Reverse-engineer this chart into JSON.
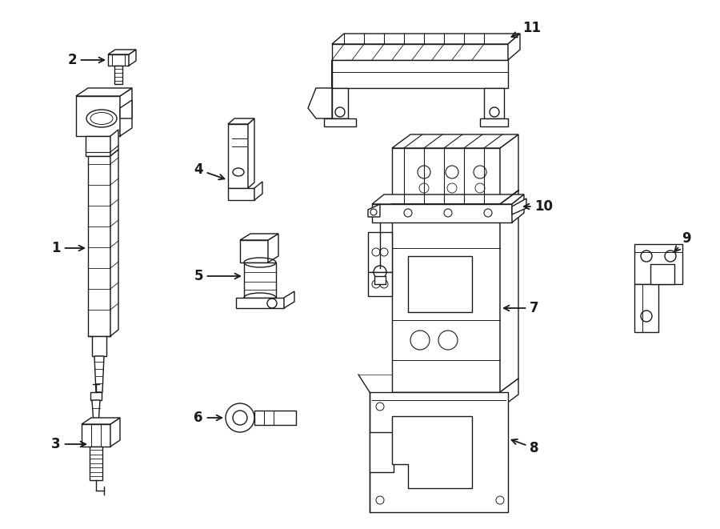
{
  "background_color": "#ffffff",
  "line_color": "#1a1a1a",
  "line_width": 1.0,
  "label_fontsize": 12,
  "figsize": [
    9.0,
    6.61
  ],
  "dpi": 100
}
